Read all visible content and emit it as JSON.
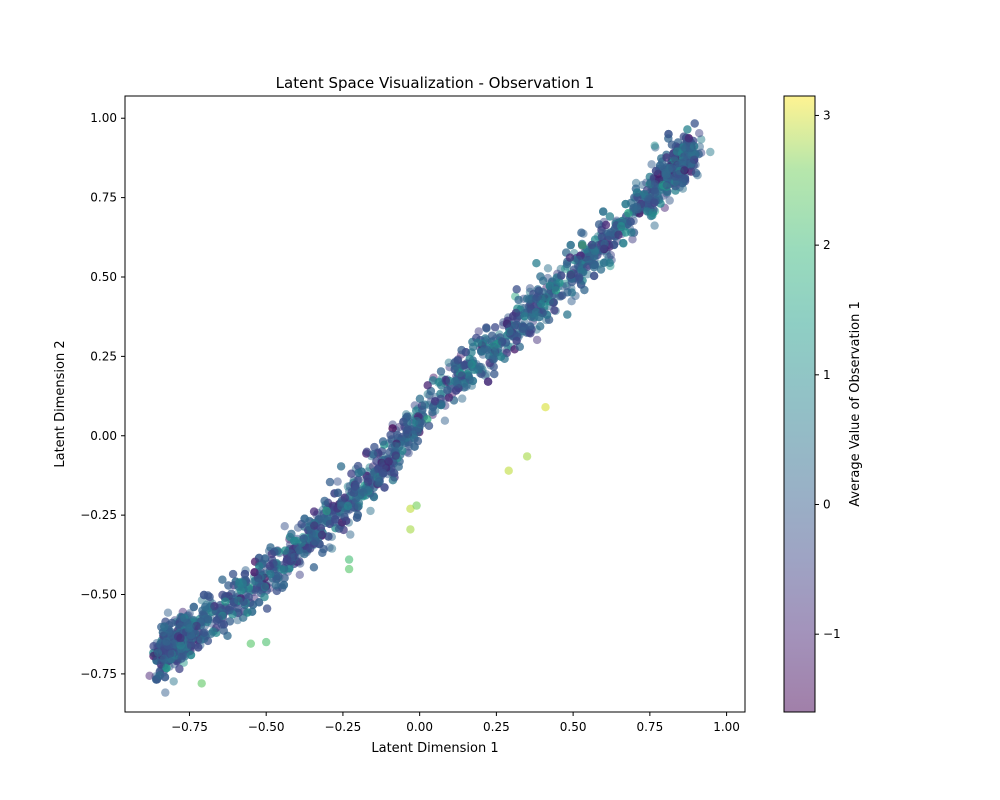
{
  "chart_data": {
    "type": "scatter",
    "title": "Latent Space Visualization - Observation 1",
    "xlabel": "Latent Dimension 1",
    "ylabel": "Latent Dimension 2",
    "xlim": [
      -0.96,
      1.06
    ],
    "ylim": [
      -0.87,
      1.07
    ],
    "xticks": [
      -0.75,
      -0.5,
      -0.25,
      0.0,
      0.25,
      0.5,
      0.75,
      1.0
    ],
    "xtick_labels": [
      "−0.75",
      "−0.50",
      "−0.25",
      "0.00",
      "0.25",
      "0.50",
      "0.75",
      "1.00"
    ],
    "yticks": [
      -0.75,
      -0.5,
      -0.25,
      0.0,
      0.25,
      0.5,
      0.75,
      1.0
    ],
    "ytick_labels": [
      "−0.75",
      "−0.50",
      "−0.25",
      "0.00",
      "0.25",
      "0.50",
      "0.75",
      "1.00"
    ],
    "grid": false,
    "colormap": "viridis",
    "point_alpha": 0.5,
    "colorbar": {
      "label": "Average Value of Observation 1",
      "range": [
        -1.6,
        3.15
      ],
      "ticks": [
        -1,
        0,
        1,
        2,
        3
      ],
      "tick_labels": [
        "−1",
        "0",
        "1",
        "2",
        "3"
      ]
    },
    "trend": {
      "x": [
        -0.86,
        -0.75,
        -0.6,
        -0.45,
        -0.3,
        -0.15,
        0.0,
        0.15,
        0.3,
        0.45,
        0.6,
        0.75,
        0.88
      ],
      "y": [
        -0.7,
        -0.62,
        -0.52,
        -0.41,
        -0.28,
        -0.13,
        0.05,
        0.2,
        0.33,
        0.46,
        0.6,
        0.75,
        0.88
      ]
    },
    "highlighted_points": [
      {
        "x": 0.41,
        "y": 0.09,
        "value": 3.0
      },
      {
        "x": 0.29,
        "y": -0.11,
        "value": 2.9
      },
      {
        "x": 0.35,
        "y": -0.065,
        "value": 2.8
      },
      {
        "x": -0.03,
        "y": -0.23,
        "value": 2.9
      },
      {
        "x": -0.01,
        "y": -0.22,
        "value": 2.6
      },
      {
        "x": -0.03,
        "y": -0.295,
        "value": 2.8
      },
      {
        "x": -0.23,
        "y": -0.42,
        "value": 2.3
      },
      {
        "x": -0.71,
        "y": -0.78,
        "value": 2.4
      },
      {
        "x": -0.5,
        "y": -0.65,
        "value": 2.2
      },
      {
        "x": -0.55,
        "y": -0.655,
        "value": 2.3
      },
      {
        "x": 0.53,
        "y": 0.6,
        "value": 2.0
      },
      {
        "x": -0.23,
        "y": -0.39,
        "value": 2.1
      }
    ]
  }
}
